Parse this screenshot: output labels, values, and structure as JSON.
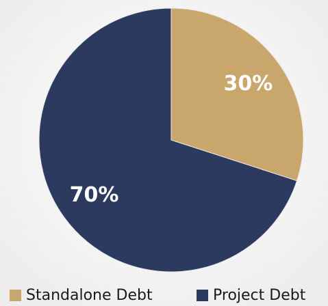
{
  "chart_data": {
    "type": "pie",
    "categories": [
      "Standalone Debt",
      "Project Debt"
    ],
    "values": [
      30,
      70
    ],
    "value_labels": [
      "30%",
      "70%"
    ],
    "colors": [
      "#c9a66b",
      "#2b3a5e"
    ],
    "legend": "bottom"
  }
}
